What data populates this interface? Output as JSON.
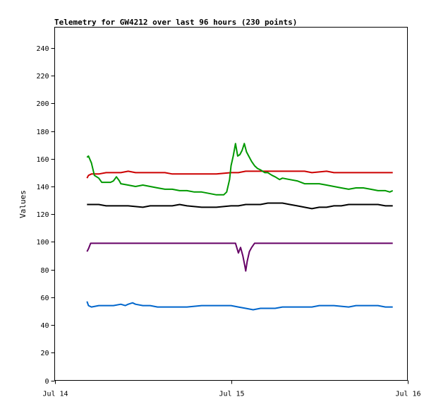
{
  "chart_data": {
    "type": "line",
    "title": "Telemetry for GW4212 over last 96 hours (230 points)",
    "xlabel": "",
    "ylabel": "Values",
    "ylim": [
      0,
      255
    ],
    "yticks": [
      0,
      20,
      40,
      60,
      80,
      100,
      120,
      140,
      160,
      180,
      200,
      220,
      240
    ],
    "x_ticks": [
      "Jul 14",
      "Jul 15",
      "Jul 16"
    ],
    "x_tick_hours": [
      0,
      24,
      48
    ],
    "xlim_hours": [
      0,
      48
    ],
    "grid": false,
    "series": [
      {
        "color": "#cc0000",
        "points": [
          [
            4.4,
            146
          ],
          [
            4.6,
            148
          ],
          [
            5.0,
            149
          ],
          [
            6.0,
            149
          ],
          [
            7.0,
            150
          ],
          [
            8.0,
            150
          ],
          [
            9.0,
            150
          ],
          [
            10.0,
            151
          ],
          [
            11.0,
            150
          ],
          [
            12.0,
            150
          ],
          [
            13.0,
            150
          ],
          [
            15.0,
            150
          ],
          [
            16.0,
            149
          ],
          [
            18.0,
            149
          ],
          [
            20.0,
            149
          ],
          [
            22.0,
            149
          ],
          [
            24.0,
            150
          ],
          [
            25.0,
            150
          ],
          [
            26.0,
            151
          ],
          [
            28.0,
            151
          ],
          [
            32.0,
            151
          ],
          [
            34.0,
            151
          ],
          [
            35.0,
            150
          ],
          [
            37.0,
            151
          ],
          [
            38.0,
            150
          ],
          [
            40.0,
            150
          ],
          [
            42.0,
            150
          ],
          [
            44.0,
            150
          ],
          [
            45.0,
            150
          ],
          [
            46.0,
            150
          ]
        ]
      },
      {
        "color": "#009900",
        "points": [
          [
            4.4,
            161
          ],
          [
            4.6,
            162
          ],
          [
            5.0,
            157
          ],
          [
            5.4,
            148
          ],
          [
            6.0,
            146
          ],
          [
            6.4,
            143
          ],
          [
            7.0,
            143
          ],
          [
            7.6,
            143
          ],
          [
            8.0,
            144
          ],
          [
            8.4,
            147
          ],
          [
            8.8,
            144
          ],
          [
            9.0,
            142
          ],
          [
            10.0,
            141
          ],
          [
            11.0,
            140
          ],
          [
            12.0,
            141
          ],
          [
            13.0,
            140
          ],
          [
            14.0,
            139
          ],
          [
            15.0,
            138
          ],
          [
            16.0,
            138
          ],
          [
            17.0,
            137
          ],
          [
            18.0,
            137
          ],
          [
            19.0,
            136
          ],
          [
            20.0,
            136
          ],
          [
            21.0,
            135
          ],
          [
            22.0,
            134
          ],
          [
            23.0,
            134
          ],
          [
            23.4,
            136
          ],
          [
            23.8,
            145
          ],
          [
            24.0,
            155
          ],
          [
            24.3,
            162
          ],
          [
            24.6,
            171
          ],
          [
            24.9,
            162
          ],
          [
            25.2,
            163
          ],
          [
            25.5,
            166
          ],
          [
            25.8,
            171
          ],
          [
            26.1,
            165
          ],
          [
            26.4,
            162
          ],
          [
            26.8,
            158
          ],
          [
            27.2,
            155
          ],
          [
            27.6,
            153
          ],
          [
            28.0,
            152
          ],
          [
            28.6,
            150
          ],
          [
            29.0,
            150
          ],
          [
            29.6,
            148
          ],
          [
            30.0,
            147
          ],
          [
            30.6,
            145
          ],
          [
            31.0,
            146
          ],
          [
            32.0,
            145
          ],
          [
            33.0,
            144
          ],
          [
            34.0,
            142
          ],
          [
            35.0,
            142
          ],
          [
            36.0,
            142
          ],
          [
            37.0,
            141
          ],
          [
            38.0,
            140
          ],
          [
            39.0,
            139
          ],
          [
            40.0,
            138
          ],
          [
            41.0,
            139
          ],
          [
            42.0,
            139
          ],
          [
            43.0,
            138
          ],
          [
            44.0,
            137
          ],
          [
            45.0,
            137
          ],
          [
            45.6,
            136
          ],
          [
            46.0,
            137
          ]
        ]
      },
      {
        "color": "#000000",
        "points": [
          [
            4.4,
            127
          ],
          [
            5.0,
            127
          ],
          [
            6.0,
            127
          ],
          [
            7.0,
            126
          ],
          [
            8.0,
            126
          ],
          [
            9.0,
            126
          ],
          [
            10.0,
            126
          ],
          [
            12.0,
            125
          ],
          [
            13.0,
            126
          ],
          [
            15.0,
            126
          ],
          [
            16.0,
            126
          ],
          [
            17.0,
            127
          ],
          [
            18.0,
            126
          ],
          [
            20.0,
            125
          ],
          [
            22.0,
            125
          ],
          [
            24.0,
            126
          ],
          [
            25.0,
            126
          ],
          [
            26.0,
            127
          ],
          [
            28.0,
            127
          ],
          [
            29.0,
            128
          ],
          [
            31.0,
            128
          ],
          [
            32.0,
            127
          ],
          [
            33.0,
            126
          ],
          [
            34.0,
            125
          ],
          [
            35.0,
            124
          ],
          [
            36.0,
            125
          ],
          [
            37.0,
            125
          ],
          [
            38.0,
            126
          ],
          [
            39.0,
            126
          ],
          [
            40.0,
            127
          ],
          [
            42.0,
            127
          ],
          [
            44.0,
            127
          ],
          [
            45.0,
            126
          ],
          [
            46.0,
            126
          ]
        ]
      },
      {
        "color": "#660066",
        "points": [
          [
            4.4,
            93
          ],
          [
            4.6,
            95
          ],
          [
            4.9,
            99
          ],
          [
            5.4,
            99
          ],
          [
            10.0,
            99
          ],
          [
            15.0,
            99
          ],
          [
            20.0,
            99
          ],
          [
            24.6,
            99
          ],
          [
            25.0,
            92
          ],
          [
            25.3,
            96
          ],
          [
            25.6,
            90
          ],
          [
            25.9,
            82
          ],
          [
            26.0,
            79
          ],
          [
            26.2,
            86
          ],
          [
            26.5,
            93
          ],
          [
            26.8,
            96
          ],
          [
            27.2,
            99
          ],
          [
            30.0,
            99
          ],
          [
            35.0,
            99
          ],
          [
            40.0,
            99
          ],
          [
            46.0,
            99
          ]
        ]
      },
      {
        "color": "#0066cc",
        "points": [
          [
            4.4,
            57
          ],
          [
            4.6,
            54
          ],
          [
            5.0,
            53
          ],
          [
            6.0,
            54
          ],
          [
            7.0,
            54
          ],
          [
            8.0,
            54
          ],
          [
            9.0,
            55
          ],
          [
            9.6,
            54
          ],
          [
            10.0,
            55
          ],
          [
            10.6,
            56
          ],
          [
            11.0,
            55
          ],
          [
            12.0,
            54
          ],
          [
            13.0,
            54
          ],
          [
            14.0,
            53
          ],
          [
            16.0,
            53
          ],
          [
            18.0,
            53
          ],
          [
            20.0,
            54
          ],
          [
            22.0,
            54
          ],
          [
            24.0,
            54
          ],
          [
            25.0,
            53
          ],
          [
            26.0,
            52
          ],
          [
            27.0,
            51
          ],
          [
            28.0,
            52
          ],
          [
            29.0,
            52
          ],
          [
            30.0,
            52
          ],
          [
            31.0,
            53
          ],
          [
            33.0,
            53
          ],
          [
            35.0,
            53
          ],
          [
            36.0,
            54
          ],
          [
            38.0,
            54
          ],
          [
            40.0,
            53
          ],
          [
            41.0,
            54
          ],
          [
            42.0,
            54
          ],
          [
            44.0,
            54
          ],
          [
            45.0,
            53
          ],
          [
            46.0,
            53
          ]
        ]
      }
    ]
  }
}
